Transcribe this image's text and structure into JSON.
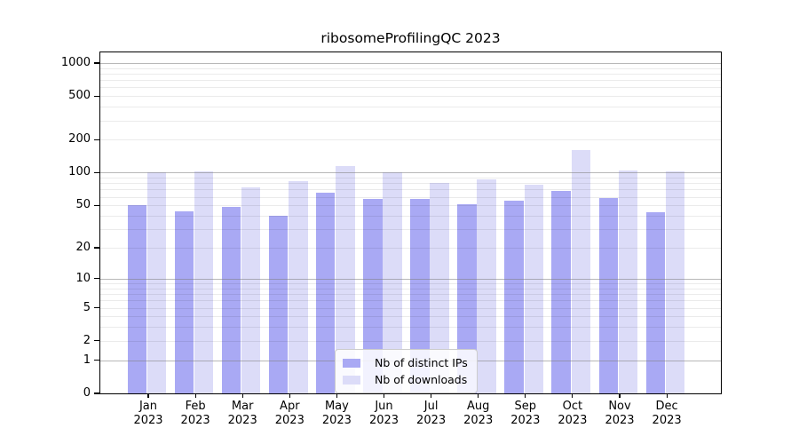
{
  "title": "ribosomeProfilingQC 2023",
  "chart_data": {
    "type": "bar",
    "title": "ribosomeProfilingQC 2023",
    "categories": [
      "Jan",
      "Feb",
      "Mar",
      "Apr",
      "May",
      "Jun",
      "Jul",
      "Aug",
      "Sep",
      "Oct",
      "Nov",
      "Dec"
    ],
    "year_label": "2023",
    "series": [
      {
        "name": "Nb of distinct IPs",
        "color": "#a9a9f4",
        "values": [
          50,
          44,
          48,
          40,
          65,
          57,
          57,
          51,
          55,
          68,
          58,
          43
        ]
      },
      {
        "name": "Nb of downloads",
        "color": "#dcdcf8",
        "values": [
          100,
          102,
          73,
          83,
          114,
          100,
          81,
          87,
          77,
          160,
          105,
          103
        ]
      }
    ],
    "xlabel": "",
    "ylabel": "",
    "yscale": "log1p",
    "yticks": [
      0,
      1,
      2,
      5,
      10,
      20,
      50,
      100,
      200,
      500,
      1000
    ],
    "ylim": [
      0,
      1250
    ],
    "grid": {
      "major": [
        1,
        10,
        100,
        1000
      ],
      "minor": [
        2,
        3,
        4,
        5,
        6,
        7,
        8,
        9,
        20,
        30,
        40,
        50,
        60,
        70,
        80,
        90,
        200,
        300,
        400,
        500,
        600,
        700,
        800,
        900
      ],
      "position": "above-bars"
    },
    "legend": {
      "position": "lower-center"
    },
    "colors": {
      "axis": "#000000",
      "grid_major": "#7d7d7d",
      "grid_minor": "#e8e8e8",
      "background": "#ffffff",
      "text": "#000000"
    }
  }
}
